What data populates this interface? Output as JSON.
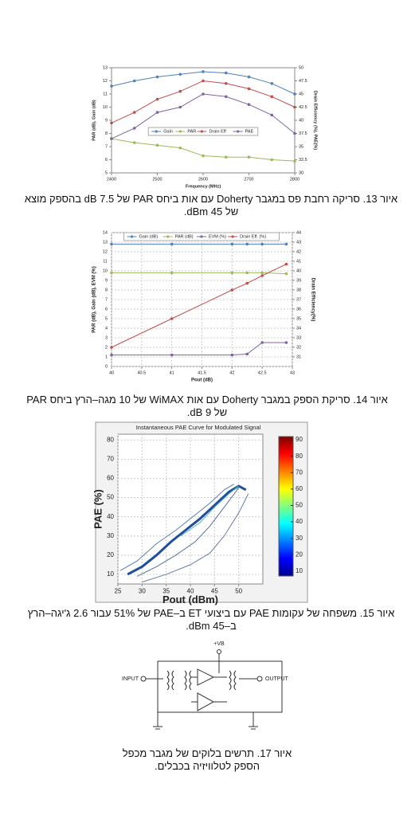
{
  "chart_data": [
    {
      "type": "line",
      "x": [
        2400,
        2450,
        2500,
        2550,
        2600,
        2650,
        2700,
        2750,
        2800
      ],
      "xlabel": "Frequency (MHz)",
      "ylabel": "PAR (dB), Gain (dB)",
      "y2label": "Drain Efficiency (%), PAE(%)",
      "xlim": [
        2400,
        2800
      ],
      "xticks": [
        2400,
        2500,
        2600,
        2700,
        2800
      ],
      "ylim": [
        5,
        13
      ],
      "yticks": [
        5,
        6,
        7,
        8,
        9,
        10,
        11,
        12,
        13
      ],
      "y2lim": [
        30,
        50
      ],
      "y2ticks": [
        30,
        32.5,
        35,
        37.5,
        40,
        42.5,
        45,
        47.5,
        50
      ],
      "grid": false,
      "markers": true,
      "legend": "center",
      "series": [
        {
          "name": "Gain",
          "color": "#4f81bd",
          "values": [
            11.6,
            12.0,
            12.3,
            12.5,
            12.7,
            12.6,
            12.3,
            11.8,
            11.0
          ]
        },
        {
          "name": "PAR",
          "color": "#9bbb59",
          "values": [
            7.6,
            7.3,
            7.1,
            6.9,
            6.3,
            6.2,
            6.2,
            6.0,
            5.9
          ]
        },
        {
          "name": "Drain Eff",
          "color": "#c0504d",
          "axis": "y2",
          "values": [
            39.5,
            41.5,
            44,
            45.5,
            47.5,
            47,
            46,
            44.5,
            42.5
          ]
        },
        {
          "name": "PAE",
          "color": "#8064a2",
          "axis": "y2",
          "values": [
            36.5,
            38.5,
            41.5,
            42.5,
            45,
            44.5,
            43,
            41,
            37.5
          ]
        }
      ]
    },
    {
      "type": "line",
      "x": [
        40,
        41,
        42,
        42.25,
        42.5,
        42.9
      ],
      "xlabel": "Pout (dB)",
      "ylabel": "PAR (dB), Gain (dB), EVM (%)",
      "y2label": "Drain Efficiency(%)",
      "xlim": [
        40,
        43
      ],
      "xticks": [
        40,
        40.5,
        41,
        41.5,
        42,
        42.5,
        43
      ],
      "ylim": [
        0,
        14
      ],
      "yticks": [
        0,
        1,
        2,
        3,
        4,
        5,
        6,
        7,
        8,
        9,
        10,
        11,
        12,
        13,
        14
      ],
      "y2lim": [
        30,
        44
      ],
      "y2ticks": [
        31,
        32,
        33,
        34,
        35,
        36,
        37,
        38,
        39,
        40,
        41,
        42,
        43,
        44
      ],
      "grid": true,
      "markers": true,
      "legend": "top",
      "series": [
        {
          "name": "Gain (dB)",
          "color": "#4f81bd",
          "values": [
            12.8,
            12.8,
            12.8,
            12.8,
            12.8,
            12.8
          ]
        },
        {
          "name": "PAR (dB)",
          "color": "#9bbb59",
          "values": [
            9.8,
            9.8,
            9.8,
            9.8,
            9.8,
            9.7
          ]
        },
        {
          "name": "EVM (%)",
          "color": "#8064a2",
          "values": [
            1.2,
            1.2,
            1.2,
            1.3,
            2.5,
            2.5
          ]
        },
        {
          "name": "Drain Eff. (%)",
          "color": "#c0504d",
          "axis": "y2",
          "values": [
            32,
            35,
            38,
            38.7,
            39.5,
            40.7
          ]
        }
      ]
    },
    {
      "type": "line",
      "title": "Instantaneous PAE Curve for Modulated Signal",
      "xlabel": "Pout (dBm)",
      "ylabel": "PAE (%)",
      "xlim": [
        25,
        55
      ],
      "xticks": [
        25,
        30,
        35,
        40,
        45,
        50
      ],
      "ylim": [
        5,
        83
      ],
      "yticks": [
        10,
        20,
        30,
        40,
        50,
        60,
        70,
        80
      ],
      "grid": true,
      "markers": false,
      "colorbar": {
        "lim": [
          7,
          92
        ],
        "ticks": [
          10,
          20,
          30,
          40,
          50,
          60,
          70,
          80,
          90
        ]
      },
      "series": [
        {
          "color": "#1f4e9c",
          "x": [
            27,
            30,
            33,
            36,
            39,
            42,
            45,
            48,
            50,
            51.5
          ],
          "values": [
            10,
            14,
            20,
            27,
            33,
            39,
            46,
            53,
            56,
            54
          ]
        },
        {
          "color": "#5a7fa8",
          "x": [
            25.5,
            29,
            33,
            37,
            41,
            44,
            47,
            49
          ],
          "values": [
            12,
            17,
            26,
            33,
            41,
            47,
            54,
            57
          ]
        },
        {
          "color": "#56709a",
          "x": [
            29,
            33,
            37,
            41,
            44,
            47,
            50
          ],
          "values": [
            9,
            14,
            20,
            27,
            35,
            45,
            55
          ]
        },
        {
          "color": "#6a7fa0",
          "x": [
            30,
            35,
            40,
            44,
            47,
            50,
            52
          ],
          "values": [
            6,
            10,
            15,
            21,
            30,
            42,
            52
          ]
        },
        {
          "color": "#4fb3c8",
          "x": [
            38,
            42,
            45,
            48,
            50
          ],
          "values": [
            30,
            37,
            45,
            52,
            56
          ]
        }
      ]
    }
  ],
  "captions": [
    "איור 13. סריקה רחבת פס במגבר Doherty עם אות ביחס PAR של 7.5 dB בהספק מוצא של 45 dBm.",
    "איור 14. סריקת הספק במגבר Doherty  עם אות WiMAX של 10 מגה–הרץ ביחס PAR של 9 dB.",
    "איור 15. משפחה של עקומות PAE עם ביצועי ET ב–PAE של 51% עבור 2.6 ג'יגה–הרץ ב–45 dBm.",
    "איור 17. תרשים בלוקים של מגבר מכפל הספק לטלוויזיה בכבלים."
  ],
  "diagram": {
    "vb": "+VB",
    "input": "INPUT",
    "output": "OUTPUT"
  }
}
